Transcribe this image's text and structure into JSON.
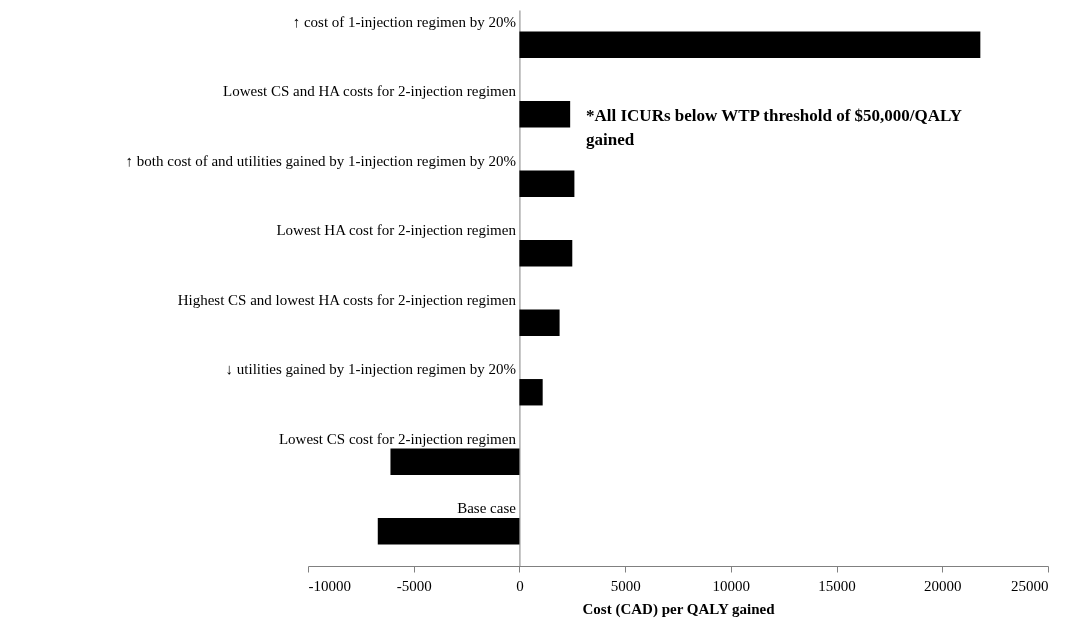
{
  "chart_data": {
    "type": "bar",
    "orientation": "horizontal",
    "categories": [
      "↑ cost of 1-injection regimen by 20%",
      "Lowest CS and HA costs for 2-injection regimen",
      "↑ both cost of and utilities gained by 1-injection regimen by 20%",
      "Lowest HA cost for 2-injection regimen",
      "Highest CS and lowest HA costs for 2-injection regimen",
      "↓ utilities gained by 1-injection regimen by 20%",
      "Lowest CS cost for 2-injection regimen",
      "Base case"
    ],
    "values": [
      21800,
      2400,
      2600,
      2500,
      1900,
      1100,
      -6100,
      -6700
    ],
    "color": "#000000",
    "xlim": [
      -10000,
      25000
    ],
    "xticks": [
      -10000,
      -5000,
      0,
      5000,
      10000,
      15000,
      20000,
      25000
    ],
    "xlabel": "Cost (CAD) per QALY gained",
    "annotations": [
      "*All ICURs below WTP threshold of $50,000/QALY gained"
    ],
    "grid": false
  }
}
